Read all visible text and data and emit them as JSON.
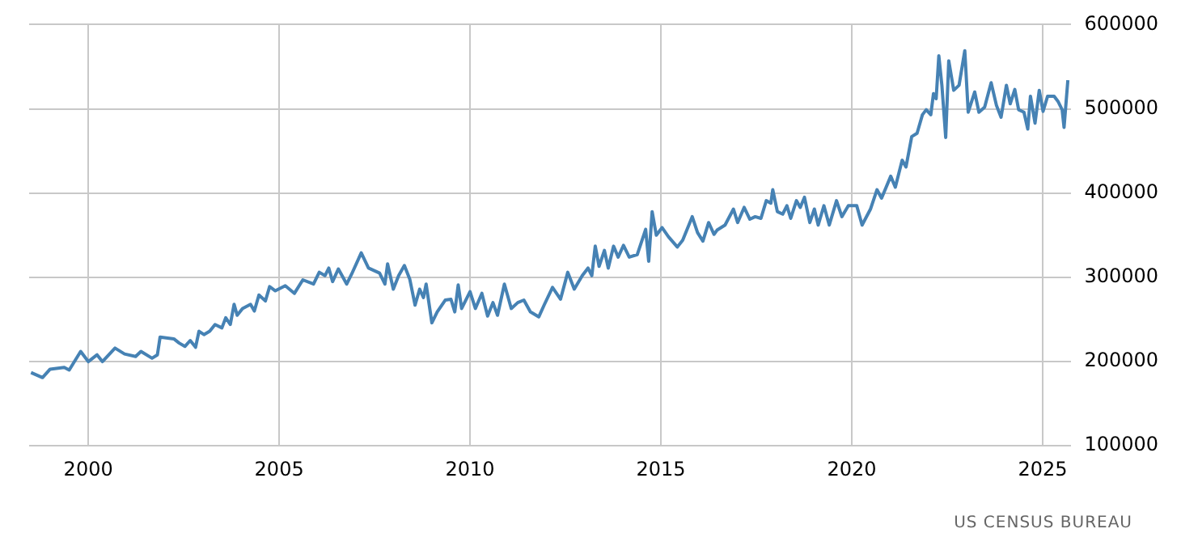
{
  "chart_data": {
    "type": "line",
    "xlim": [
      1998.45,
      2025.75
    ],
    "xticks": [
      2000,
      2005,
      2010,
      2015,
      2020,
      2025
    ],
    "ylim": [
      100000,
      600000
    ],
    "yticks": [
      100000,
      200000,
      300000,
      400000,
      500000,
      600000
    ],
    "grid": true,
    "legend": false,
    "marker": "none",
    "line_style": "solid",
    "annotations": [
      "US CENSUS BUREAU"
    ],
    "series": [
      {
        "color": "#4682b4",
        "x": [
          1998.5,
          1998.8,
          1999.0,
          1999.37,
          1999.5,
          1999.8,
          2000.0,
          2000.23,
          2000.37,
          2000.7,
          2000.95,
          2001.24,
          2001.38,
          2001.67,
          2001.81,
          2001.88,
          2002.24,
          2002.38,
          2002.53,
          2002.67,
          2002.81,
          2002.9,
          2003.03,
          2003.18,
          2003.32,
          2003.5,
          2003.6,
          2003.72,
          2003.82,
          2003.9,
          2004.04,
          2004.25,
          2004.35,
          2004.47,
          2004.64,
          2004.75,
          2004.9,
          2005.16,
          2005.4,
          2005.62,
          2005.9,
          2006.05,
          2006.2,
          2006.3,
          2006.4,
          2006.55,
          2006.77,
          2006.9,
          2007.15,
          2007.34,
          2007.63,
          2007.77,
          2007.84,
          2007.99,
          2008.13,
          2008.28,
          2008.42,
          2008.56,
          2008.68,
          2008.78,
          2008.85,
          2009.0,
          2009.14,
          2009.35,
          2009.5,
          2009.6,
          2009.69,
          2009.78,
          2010.0,
          2010.14,
          2010.31,
          2010.46,
          2010.6,
          2010.72,
          2010.9,
          2011.08,
          2011.25,
          2011.41,
          2011.58,
          2011.8,
          2011.94,
          2012.16,
          2012.37,
          2012.56,
          2012.73,
          2012.94,
          2013.09,
          2013.19,
          2013.28,
          2013.38,
          2013.52,
          2013.62,
          2013.76,
          2013.88,
          2014.02,
          2014.17,
          2014.38,
          2014.6,
          2014.68,
          2014.77,
          2014.88,
          2015.03,
          2015.2,
          2015.43,
          2015.57,
          2015.82,
          2015.96,
          2016.1,
          2016.25,
          2016.39,
          2016.47,
          2016.68,
          2016.9,
          2017.01,
          2017.18,
          2017.33,
          2017.47,
          2017.62,
          2017.76,
          2017.88,
          2017.93,
          2018.05,
          2018.19,
          2018.3,
          2018.4,
          2018.55,
          2018.65,
          2018.76,
          2018.9,
          2019.02,
          2019.12,
          2019.27,
          2019.41,
          2019.6,
          2019.74,
          2019.91,
          2020.13,
          2020.27,
          2020.49,
          2020.66,
          2020.78,
          2021.02,
          2021.14,
          2021.32,
          2021.42,
          2021.57,
          2021.71,
          2021.85,
          2021.95,
          2022.07,
          2022.14,
          2022.21,
          2022.28,
          2022.36,
          2022.46,
          2022.54,
          2022.67,
          2022.81,
          2022.96,
          2023.05,
          2023.22,
          2023.33,
          2023.48,
          2023.65,
          2023.79,
          2023.91,
          2024.05,
          2024.15,
          2024.27,
          2024.37,
          2024.51,
          2024.61,
          2024.68,
          2024.8,
          2024.91,
          2025.01,
          2025.13,
          2025.3,
          2025.4,
          2025.51,
          2025.56,
          2025.66
        ],
        "values": [
          187000,
          181000,
          191000,
          193000,
          190000,
          212000,
          200000,
          208000,
          200000,
          216000,
          209000,
          206000,
          212000,
          204000,
          208000,
          229000,
          227000,
          222000,
          218000,
          225000,
          217000,
          236000,
          232000,
          236000,
          244000,
          240000,
          252000,
          244000,
          268000,
          255000,
          263000,
          268000,
          260000,
          279000,
          272000,
          289000,
          284000,
          290000,
          281000,
          297000,
          292000,
          306000,
          302000,
          311000,
          295000,
          310000,
          292000,
          304000,
          329000,
          311000,
          305000,
          292000,
          316000,
          286000,
          302000,
          314000,
          298000,
          267000,
          286000,
          276000,
          292000,
          246000,
          259000,
          273000,
          274000,
          259000,
          291000,
          263000,
          283000,
          263000,
          281000,
          254000,
          270000,
          255000,
          292000,
          263000,
          270000,
          273000,
          259000,
          253000,
          267000,
          288000,
          274000,
          306000,
          286000,
          302000,
          311000,
          302000,
          337000,
          313000,
          332000,
          311000,
          337000,
          324000,
          338000,
          324000,
          327000,
          357000,
          319000,
          378000,
          350000,
          359000,
          348000,
          336000,
          344000,
          372000,
          353000,
          343000,
          365000,
          351000,
          356000,
          362000,
          381000,
          365000,
          383000,
          369000,
          372000,
          370000,
          391000,
          388000,
          404000,
          378000,
          375000,
          385000,
          370000,
          391000,
          383000,
          395000,
          365000,
          381000,
          362000,
          385000,
          362000,
          391000,
          372000,
          385000,
          385000,
          362000,
          381000,
          404000,
          394000,
          420000,
          407000,
          439000,
          431000,
          467000,
          471000,
          493000,
          499000,
          493000,
          518000,
          512000,
          563000,
          528000,
          466000,
          557000,
          522000,
          528000,
          569000,
          496000,
          520000,
          496000,
          502000,
          531000,
          504000,
          490000,
          528000,
          506000,
          523000,
          499000,
          496000,
          476000,
          515000,
          483000,
          522000,
          497000,
          515000,
          515000,
          509000,
          499000,
          478000,
          534000
        ]
      }
    ]
  }
}
